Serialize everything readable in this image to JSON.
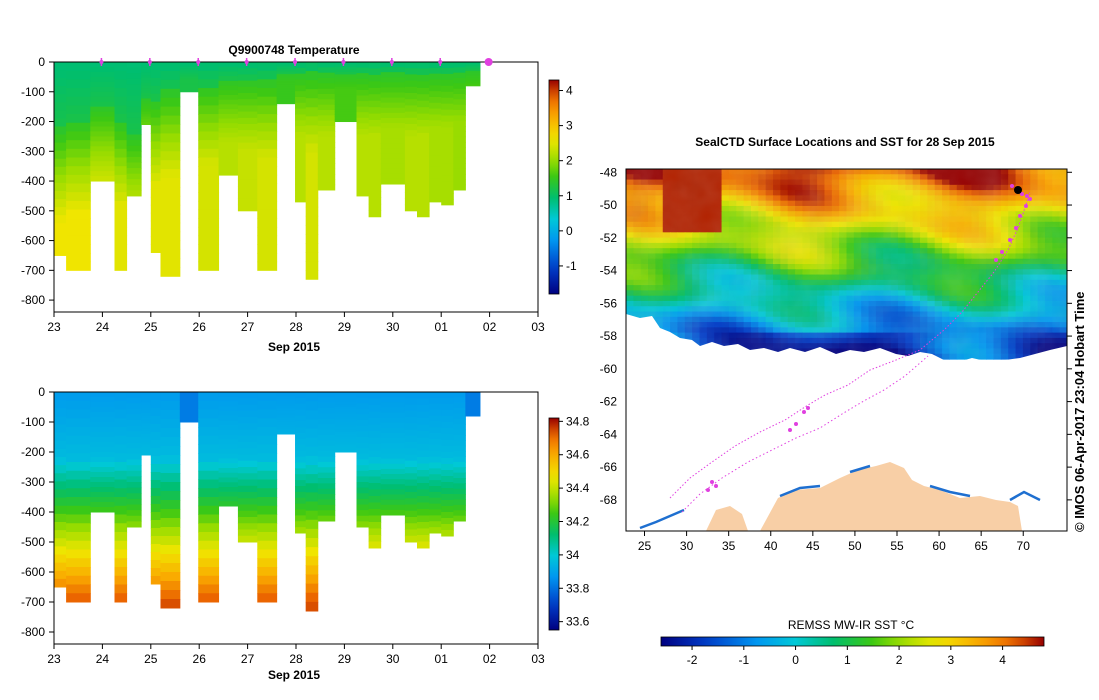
{
  "chart_data": [
    {
      "type": "heatmap",
      "title": "Q9900748  Temperature",
      "xlabel": "Sep 2015",
      "ylabel": "",
      "x_ticks": [
        "23",
        "24",
        "25",
        "26",
        "27",
        "28",
        "29",
        "30",
        "01",
        "02",
        "03"
      ],
      "y_ticks": [
        "0",
        "-100",
        "-200",
        "-300",
        "-400",
        "-500",
        "-600",
        "-700",
        "-800"
      ],
      "ylim": [
        -840,
        0
      ],
      "colorbar": {
        "min": -1.8,
        "max": 4.3,
        "ticks": [
          "4",
          "3",
          "2",
          "1",
          "0",
          "-1"
        ]
      },
      "surfacing_marker_days": [
        23.98,
        24.98,
        25.98,
        26.98,
        27.98,
        28.98,
        29.98,
        30.98
      ],
      "last_position_day": 31.98,
      "profiles": [
        {
          "x0": 23.0,
          "x1": 23.25,
          "depth": 650,
          "cold_base": -230,
          "warm": 2.6
        },
        {
          "x0": 23.25,
          "x1": 23.75,
          "depth": 700,
          "cold_base": -200,
          "warm": 2.6
        },
        {
          "x0": 23.75,
          "x1": 24.25,
          "depth": 400,
          "cold_base": -150,
          "warm": 2.4
        },
        {
          "x0": 24.25,
          "x1": 24.5,
          "depth": 700,
          "cold_base": -200,
          "warm": 2.5
        },
        {
          "x0": 24.5,
          "x1": 24.8,
          "depth": 450,
          "cold_base": -250,
          "warm": 2.4
        },
        {
          "x0": 24.8,
          "x1": 25.0,
          "depth": 210,
          "cold_base": -120,
          "warm": 2.0
        },
        {
          "x0": 25.0,
          "x1": 25.2,
          "depth": 640,
          "cold_base": -130,
          "warm": 2.5
        },
        {
          "x0": 25.2,
          "x1": 25.6,
          "depth": 720,
          "cold_base": -100,
          "warm": 2.5
        },
        {
          "x0": 25.6,
          "x1": 25.98,
          "depth": 100,
          "cold_base": -60,
          "warm": 1.2
        },
        {
          "x0": 25.98,
          "x1": 26.4,
          "depth": 700,
          "cold_base": -80,
          "warm": 2.4
        },
        {
          "x0": 26.4,
          "x1": 26.8,
          "depth": 380,
          "cold_base": -60,
          "warm": 2.2
        },
        {
          "x0": 26.8,
          "x1": 27.2,
          "depth": 500,
          "cold_base": -60,
          "warm": 2.3
        },
        {
          "x0": 27.2,
          "x1": 27.6,
          "depth": 700,
          "cold_base": -60,
          "warm": 2.4
        },
        {
          "x0": 27.6,
          "x1": 27.98,
          "depth": 140,
          "cold_base": -40,
          "warm": 1.5
        },
        {
          "x0": 27.98,
          "x1": 28.2,
          "depth": 470,
          "cold_base": -40,
          "warm": 2.2
        },
        {
          "x0": 28.2,
          "x1": 28.45,
          "depth": 730,
          "cold_base": -40,
          "warm": 2.4
        },
        {
          "x0": 28.45,
          "x1": 28.8,
          "depth": 430,
          "cold_base": -40,
          "warm": 2.2
        },
        {
          "x0": 28.8,
          "x1": 29.25,
          "depth": 200,
          "cold_base": -40,
          "warm": 1.6
        },
        {
          "x0": 29.25,
          "x1": 29.5,
          "depth": 450,
          "cold_base": -40,
          "warm": 2.2
        },
        {
          "x0": 29.5,
          "x1": 29.75,
          "depth": 520,
          "cold_base": -40,
          "warm": 2.2
        },
        {
          "x0": 29.75,
          "x1": 30.25,
          "depth": 410,
          "cold_base": -40,
          "warm": 2.1
        },
        {
          "x0": 30.25,
          "x1": 30.5,
          "depth": 500,
          "cold_base": -40,
          "warm": 2.2
        },
        {
          "x0": 30.5,
          "x1": 30.75,
          "depth": 520,
          "cold_base": -40,
          "warm": 2.2
        },
        {
          "x0": 30.75,
          "x1": 31.0,
          "depth": 470,
          "cold_base": -40,
          "warm": 2.1
        },
        {
          "x0": 31.0,
          "x1": 31.25,
          "depth": 480,
          "cold_base": -40,
          "warm": 2.1
        },
        {
          "x0": 31.25,
          "x1": 31.5,
          "depth": 430,
          "cold_base": -40,
          "warm": 2.0
        },
        {
          "x0": 31.5,
          "x1": 31.8,
          "depth": 80,
          "cold_base": -30,
          "warm": 2.3
        }
      ]
    },
    {
      "type": "heatmap",
      "title": "",
      "xlabel": "Sep 2015",
      "ylabel": "",
      "x_ticks": [
        "23",
        "24",
        "25",
        "26",
        "27",
        "28",
        "29",
        "30",
        "01",
        "02",
        "03"
      ],
      "y_ticks": [
        "0",
        "-100",
        "-200",
        "-300",
        "-400",
        "-500",
        "-600",
        "-700",
        "-800"
      ],
      "ylim": [
        -840,
        0
      ],
      "colorbar": {
        "min": 33.55,
        "max": 34.82,
        "ticks": [
          "34.8",
          "34.6",
          "34.4",
          "34.2",
          "34",
          "33.8",
          "33.6"
        ]
      }
    },
    {
      "type": "heatmap",
      "title": "SealCTD Surface Locations and SST for 28 Sep 2015",
      "xlabel": "",
      "ylabel": "",
      "x_ticks": [
        "25",
        "30",
        "35",
        "40",
        "45",
        "50",
        "55",
        "60",
        "65",
        "70"
      ],
      "y_ticks": [
        "-48",
        "-50",
        "-52",
        "-54",
        "-56",
        "-58",
        "-60",
        "-62",
        "-64",
        "-66",
        "-68"
      ],
      "xlim": [
        22.8,
        75.2
      ],
      "ylim": [
        -69.9,
        -47.8
      ],
      "colorbar_title": "REMSS MW-IR SST °C",
      "colorbar": {
        "min": -2.6,
        "max": 4.8,
        "ticks": [
          "-2",
          "-1",
          "0",
          "1",
          "2",
          "3",
          "4"
        ]
      },
      "copyright": "© IMOS 06-Apr-2017 23:04 Hobart Time"
    }
  ]
}
